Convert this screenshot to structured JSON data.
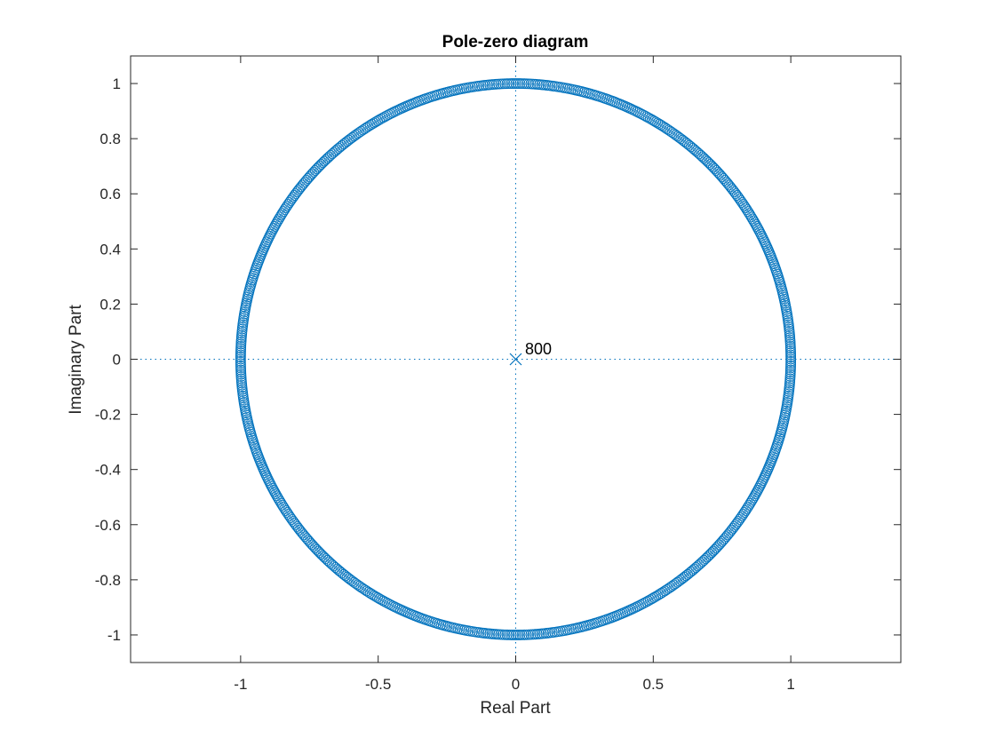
{
  "chart_data": {
    "type": "scatter",
    "title": "Pole-zero diagram",
    "xlabel": "Real Part",
    "ylabel": "Imaginary Part",
    "xlim": [
      -1.4,
      1.4
    ],
    "ylim": [
      -1.1,
      1.1
    ],
    "x_ticks": [
      -1,
      -0.5,
      0,
      0.5,
      1
    ],
    "x_tick_labels": [
      "-1",
      "-0.5",
      "0",
      "0.5",
      "1"
    ],
    "y_ticks": [
      -1,
      -0.8,
      -0.6,
      -0.4,
      -0.2,
      0,
      0.2,
      0.4,
      0.6,
      0.8,
      1
    ],
    "y_tick_labels": [
      "-1",
      "-0.8",
      "-0.6",
      "-0.4",
      "-0.2",
      "0",
      "0.2",
      "0.4",
      "0.6",
      "0.8",
      "1"
    ],
    "grid": false,
    "zeros": {
      "marker": "o",
      "count": 800,
      "radius": 1.0,
      "description_values": "zeros uniformly distributed on the unit circle"
    },
    "poles": {
      "marker": "x",
      "points": [
        {
          "x": 0,
          "y": 0
        }
      ],
      "multiplicity_label": "800"
    },
    "reference_lines": {
      "x": 0,
      "y": 0,
      "style": "dotted"
    },
    "color": "#0072BD"
  }
}
